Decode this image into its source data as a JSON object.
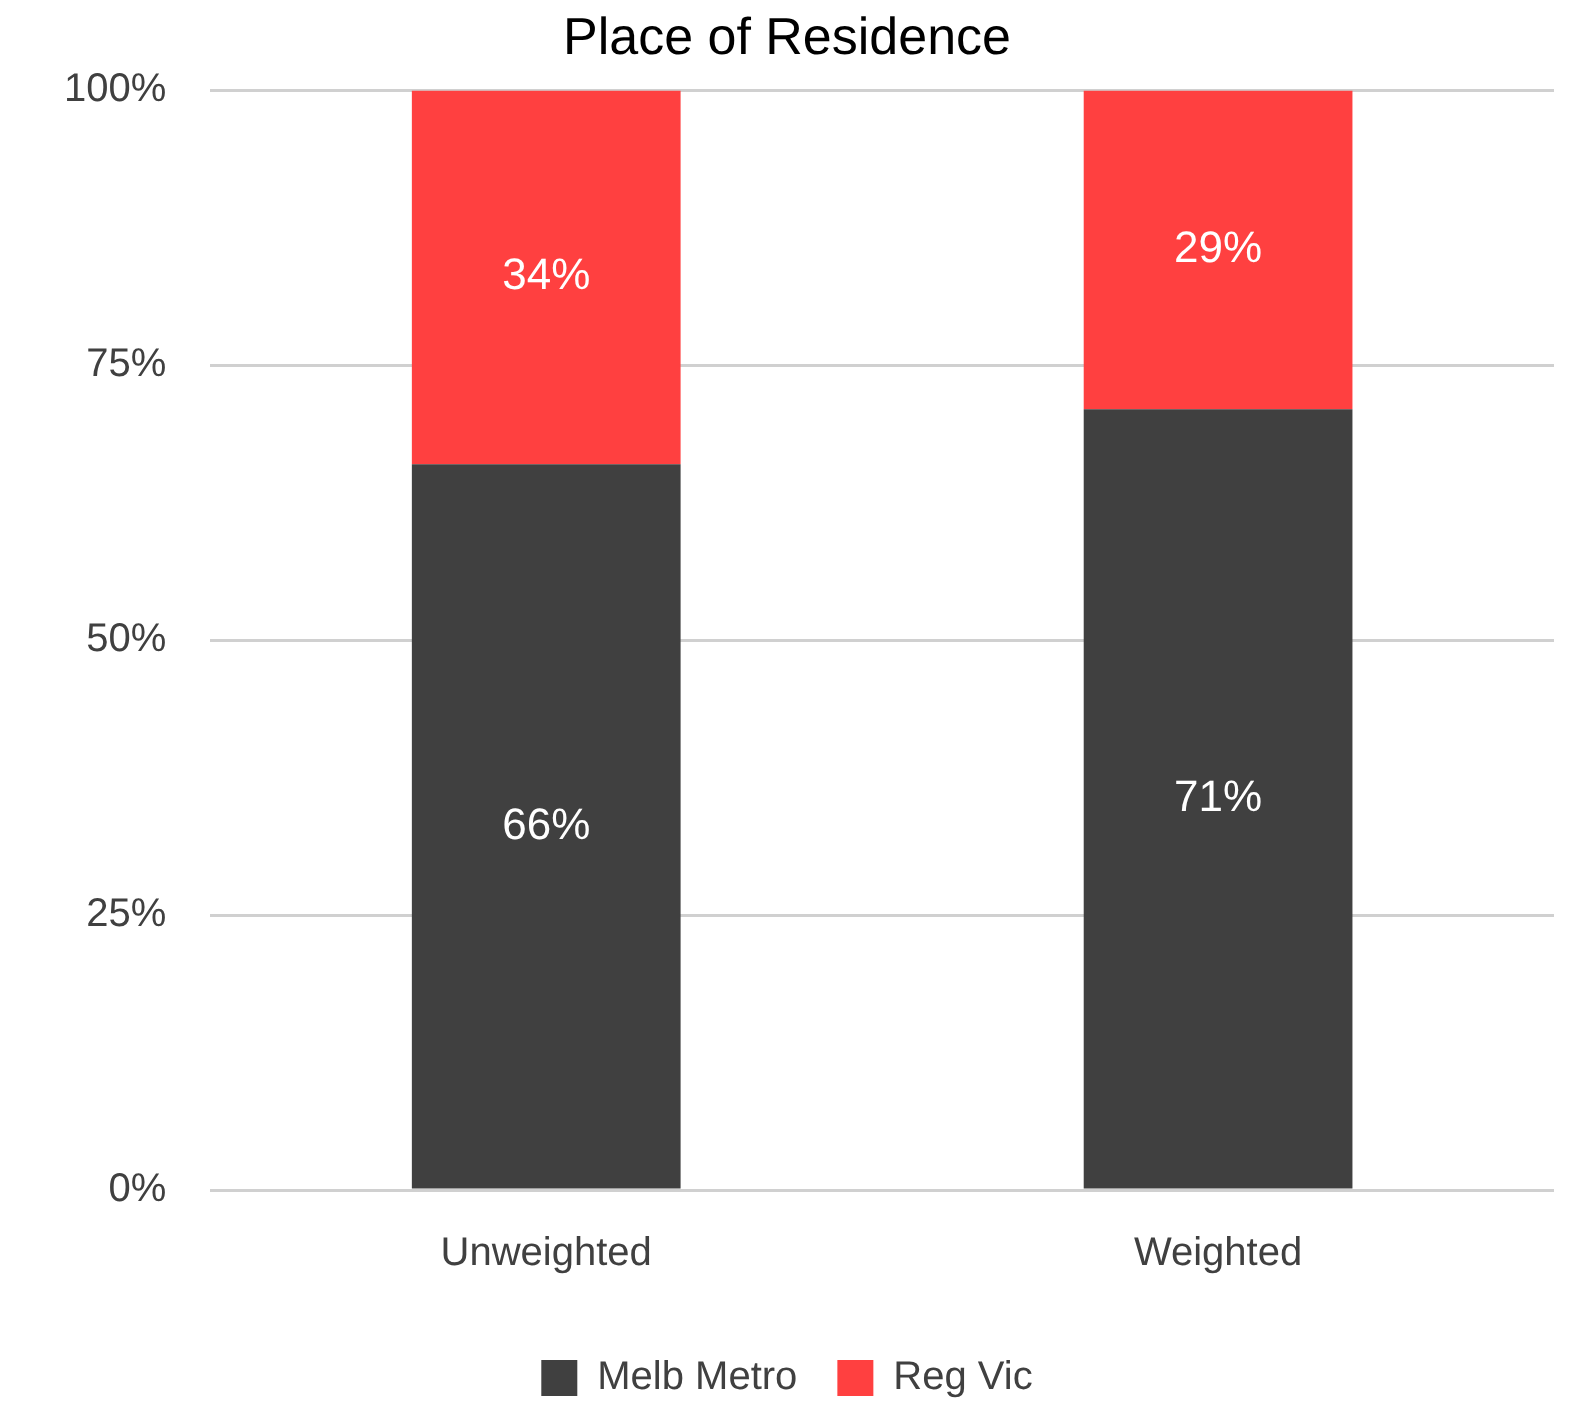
{
  "chart_data": {
    "type": "bar",
    "title": "Place of Residence",
    "stacked": true,
    "categories": [
      "Unweighted",
      "Weighted"
    ],
    "series": [
      {
        "name": "Melb Metro",
        "color": "#404040",
        "values": [
          66,
          71
        ],
        "value_labels": [
          "66%",
          "71%"
        ]
      },
      {
        "name": "Reg Vic",
        "color": "#ff4040",
        "values": [
          34,
          29
        ],
        "value_labels": [
          "34%",
          "29%"
        ]
      }
    ],
    "ylim": [
      0,
      100
    ],
    "yticks": [
      {
        "value": 0,
        "label": "0%"
      },
      {
        "value": 25,
        "label": "25%"
      },
      {
        "value": 50,
        "label": "50%"
      },
      {
        "value": 75,
        "label": "75%"
      },
      {
        "value": 100,
        "label": "100%"
      }
    ],
    "grid": "y",
    "legend": "bottom"
  }
}
